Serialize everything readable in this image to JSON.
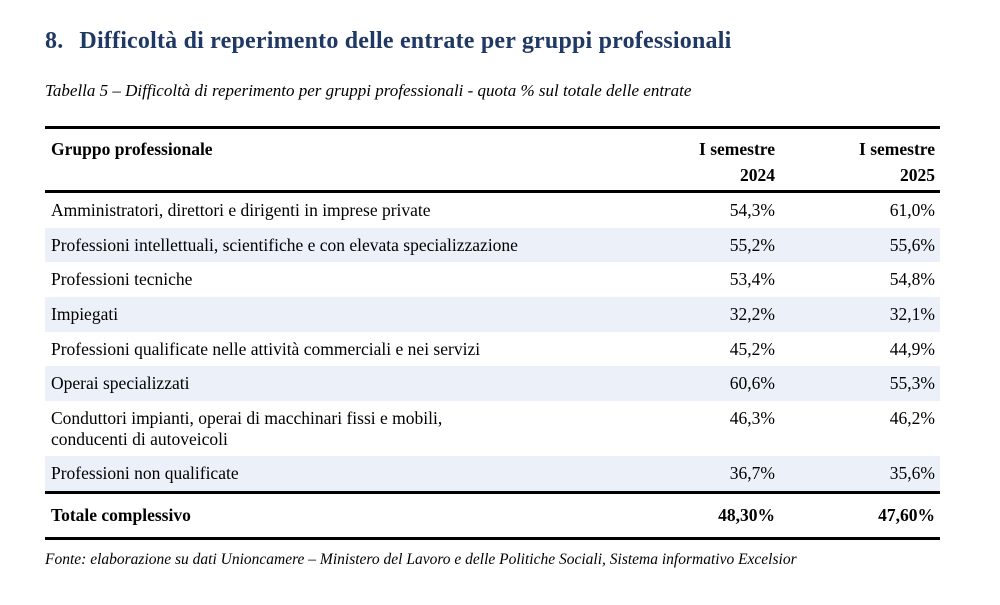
{
  "heading": {
    "number": "8.",
    "text": "Difficoltà di reperimento delle entrate per gruppi professionali"
  },
  "caption": "Tabella 5 – Difficoltà di reperimento per gruppi professionali - quota % sul totale delle entrate",
  "colors": {
    "heading": "#1f3864",
    "stripe": "#ecf1f9",
    "rule": "#000000"
  },
  "table": {
    "header": {
      "group": "Gruppo professionale",
      "col2024_line1": "I semestre",
      "col2024_line2": "2024",
      "col2025_line1": "I semestre",
      "col2025_line2": "2025"
    },
    "rows": [
      {
        "group": "Amministratori, direttori e dirigenti in imprese private",
        "s2024": "54,3%",
        "s2025": "61,0%"
      },
      {
        "group": "Professioni intellettuali, scientifiche e con elevata specializzazione",
        "s2024": "55,2%",
        "s2025": "55,6%"
      },
      {
        "group": "Professioni tecniche",
        "s2024": "53,4%",
        "s2025": "54,8%"
      },
      {
        "group": "Impiegati",
        "s2024": "32,2%",
        "s2025": "32,1%"
      },
      {
        "group": "Professioni qualificate nelle attività commerciali e nei servizi",
        "s2024": "45,2%",
        "s2025": "44,9%"
      },
      {
        "group": "Operai specializzati",
        "s2024": "60,6%",
        "s2025": "55,3%"
      },
      {
        "group": "Conduttori impianti, operai di macchinari fissi e mobili,\nconducenti di autoveicoli",
        "s2024": "46,3%",
        "s2025": "46,2%"
      },
      {
        "group": "Professioni non qualificate",
        "s2024": "36,7%",
        "s2025": "35,6%"
      }
    ],
    "total": {
      "group": "Totale complessivo",
      "s2024": "48,30%",
      "s2025": "47,60%"
    }
  },
  "source": "Fonte: elaborazione su dati Unioncamere – Ministero del Lavoro e delle Politiche Sociali, Sistema informativo Excelsior"
}
